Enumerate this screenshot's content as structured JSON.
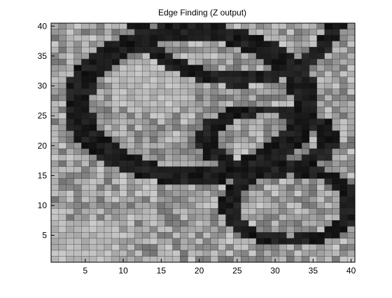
{
  "chart_data": {
    "type": "heatmap",
    "title": "Edge Finding (Z output)",
    "xlabel": "",
    "ylabel": "",
    "xlim": [
      1,
      40
    ],
    "ylim": [
      1,
      40
    ],
    "x_ticks": [
      5,
      10,
      15,
      20,
      25,
      30,
      35,
      40
    ],
    "y_ticks": [
      5,
      10,
      15,
      20,
      25,
      30,
      35,
      40
    ],
    "grid": true,
    "colormap": "gray",
    "value_range": [
      0,
      1
    ],
    "rows": 40,
    "cols": 40,
    "note_values": "Values are approximated (estimated) from the rendered grayscale cells. Rows ordered from y=40 (top) down to y=1 (bottom); each row lists x=1..40.",
    "values": []
  }
}
